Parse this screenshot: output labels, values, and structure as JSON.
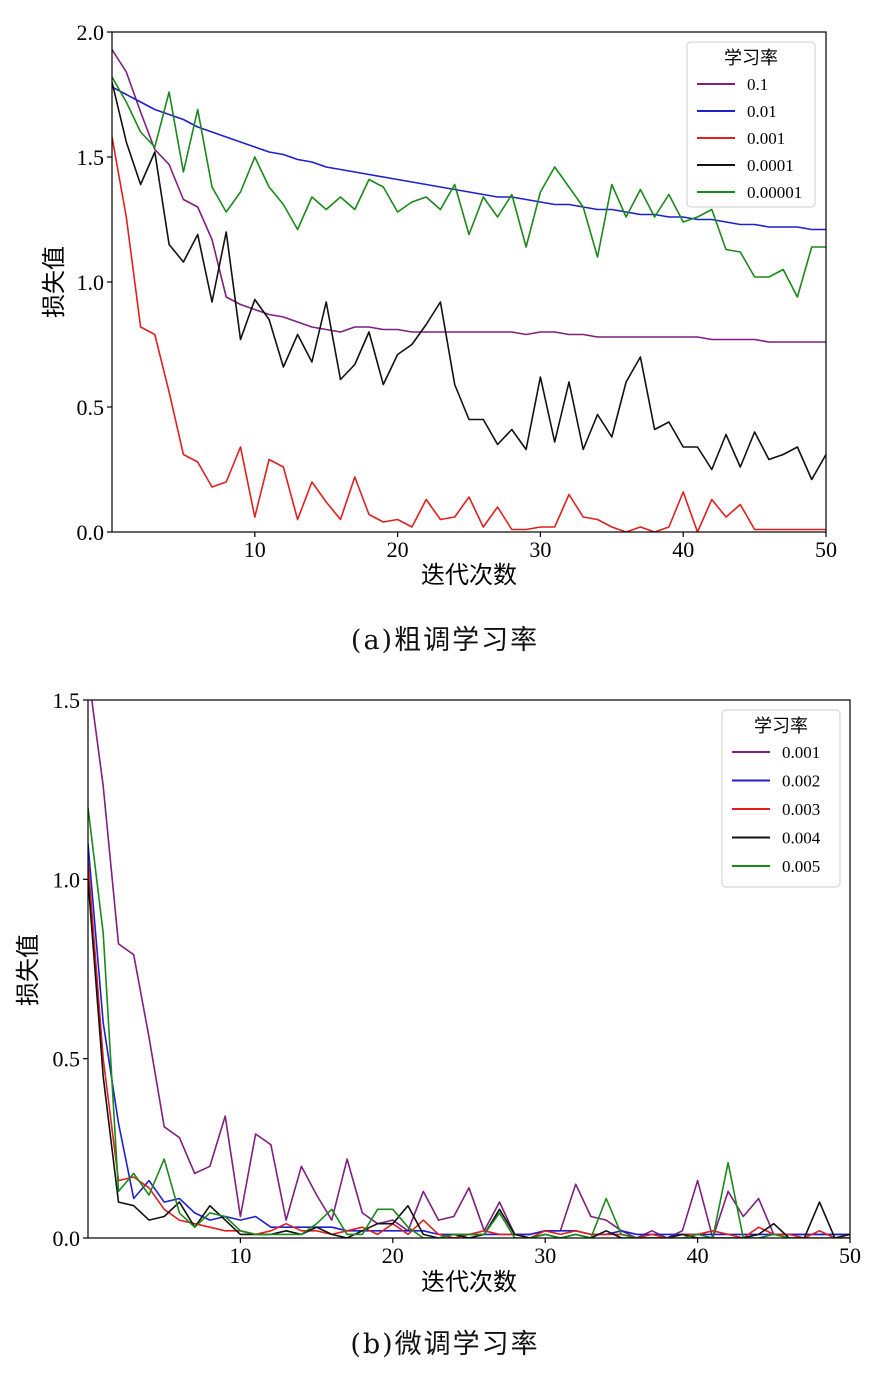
{
  "chart_data": [
    {
      "type": "line",
      "caption": "(a)粗调学习率",
      "xlabel": "迭代次数",
      "ylabel": "损失值",
      "xlim": [
        0,
        50
      ],
      "ylim": [
        0,
        2.0
      ],
      "xticks": [
        10,
        20,
        30,
        40,
        50
      ],
      "yticks": [
        0.0,
        0.5,
        1.0,
        1.5,
        2.0
      ],
      "ytick_labels": [
        "0.0",
        "0.5",
        "1.0",
        "1.5",
        "2.0"
      ],
      "legend_title": "学习率",
      "legend_position": "top-right",
      "grid": false,
      "x": [
        0,
        1,
        2,
        3,
        4,
        5,
        6,
        7,
        8,
        9,
        10,
        11,
        12,
        13,
        14,
        15,
        16,
        17,
        18,
        19,
        20,
        21,
        22,
        23,
        24,
        25,
        26,
        27,
        28,
        29,
        30,
        31,
        32,
        33,
        34,
        35,
        36,
        37,
        38,
        39,
        40,
        41,
        42,
        43,
        44,
        45,
        46,
        47,
        48,
        49,
        50
      ],
      "series": [
        {
          "name": "0.1",
          "color": "#7f1f7f",
          "values": [
            1.93,
            1.84,
            1.68,
            1.53,
            1.47,
            1.33,
            1.3,
            1.17,
            0.94,
            0.91,
            0.89,
            0.87,
            0.86,
            0.84,
            0.82,
            0.81,
            0.8,
            0.82,
            0.82,
            0.81,
            0.81,
            0.8,
            0.8,
            0.8,
            0.8,
            0.8,
            0.8,
            0.8,
            0.8,
            0.79,
            0.8,
            0.8,
            0.79,
            0.79,
            0.78,
            0.78,
            0.78,
            0.78,
            0.78,
            0.78,
            0.78,
            0.78,
            0.77,
            0.77,
            0.77,
            0.77,
            0.76,
            0.76,
            0.76,
            0.76,
            0.76
          ]
        },
        {
          "name": "0.01",
          "color": "#1f1fcf",
          "values": [
            1.78,
            1.75,
            1.72,
            1.69,
            1.67,
            1.65,
            1.62,
            1.6,
            1.58,
            1.56,
            1.54,
            1.52,
            1.51,
            1.49,
            1.48,
            1.46,
            1.45,
            1.44,
            1.43,
            1.42,
            1.41,
            1.4,
            1.39,
            1.38,
            1.37,
            1.36,
            1.35,
            1.34,
            1.34,
            1.33,
            1.32,
            1.31,
            1.31,
            1.3,
            1.29,
            1.29,
            1.28,
            1.27,
            1.27,
            1.26,
            1.26,
            1.25,
            1.25,
            1.24,
            1.23,
            1.23,
            1.22,
            1.22,
            1.22,
            1.21,
            1.21
          ]
        },
        {
          "name": "0.001",
          "color": "#e02020",
          "values": [
            1.58,
            1.26,
            0.82,
            0.79,
            0.56,
            0.31,
            0.28,
            0.18,
            0.2,
            0.34,
            0.06,
            0.29,
            0.26,
            0.05,
            0.2,
            0.12,
            0.05,
            0.22,
            0.07,
            0.04,
            0.05,
            0.02,
            0.13,
            0.05,
            0.06,
            0.14,
            0.02,
            0.1,
            0.01,
            0.01,
            0.02,
            0.02,
            0.15,
            0.06,
            0.05,
            0.02,
            0.0,
            0.02,
            0.0,
            0.02,
            0.16,
            0.0,
            0.13,
            0.06,
            0.11,
            0.01,
            0.01,
            0.01,
            0.01,
            0.01,
            0.01
          ]
        },
        {
          "name": "0.0001",
          "color": "#111111",
          "values": [
            1.8,
            1.56,
            1.39,
            1.52,
            1.15,
            1.08,
            1.19,
            0.92,
            1.2,
            0.77,
            0.93,
            0.85,
            0.66,
            0.79,
            0.68,
            0.92,
            0.61,
            0.67,
            0.8,
            0.59,
            0.71,
            0.75,
            0.83,
            0.92,
            0.59,
            0.45,
            0.45,
            0.35,
            0.41,
            0.33,
            0.62,
            0.36,
            0.6,
            0.33,
            0.47,
            0.38,
            0.6,
            0.7,
            0.41,
            0.44,
            0.34,
            0.34,
            0.25,
            0.39,
            0.26,
            0.4,
            0.29,
            0.31,
            0.34,
            0.21,
            0.31
          ]
        },
        {
          "name": "0.00001",
          "color": "#1a8a1a",
          "values": [
            1.82,
            1.72,
            1.6,
            1.54,
            1.76,
            1.44,
            1.69,
            1.38,
            1.28,
            1.36,
            1.5,
            1.38,
            1.31,
            1.21,
            1.34,
            1.29,
            1.34,
            1.29,
            1.41,
            1.38,
            1.28,
            1.32,
            1.34,
            1.29,
            1.39,
            1.19,
            1.34,
            1.26,
            1.35,
            1.14,
            1.36,
            1.46,
            1.38,
            1.3,
            1.1,
            1.39,
            1.26,
            1.37,
            1.26,
            1.35,
            1.24,
            1.26,
            1.29,
            1.13,
            1.12,
            1.02,
            1.02,
            1.05,
            0.94,
            1.14,
            1.14
          ]
        }
      ]
    },
    {
      "type": "line",
      "caption": "(b)微调学习率",
      "xlabel": "迭代次数",
      "ylabel": "损失值",
      "xlim": [
        0,
        50
      ],
      "ylim": [
        0,
        1.5
      ],
      "xticks": [
        10,
        20,
        30,
        40,
        50
      ],
      "yticks": [
        0.0,
        0.5,
        1.0,
        1.5
      ],
      "ytick_labels": [
        "0.0",
        "0.5",
        "1.0",
        "1.5"
      ],
      "legend_title": "学习率",
      "legend_position": "top-right",
      "grid": false,
      "x": [
        0,
        1,
        2,
        3,
        4,
        5,
        6,
        7,
        8,
        9,
        10,
        11,
        12,
        13,
        14,
        15,
        16,
        17,
        18,
        19,
        20,
        21,
        22,
        23,
        24,
        25,
        26,
        27,
        28,
        29,
        30,
        31,
        32,
        33,
        34,
        35,
        36,
        37,
        38,
        39,
        40,
        41,
        42,
        43,
        44,
        45,
        46,
        47,
        48,
        49,
        50
      ],
      "series": [
        {
          "name": "0.001",
          "color": "#7f1f7f",
          "values": [
            1.58,
            1.26,
            0.82,
            0.79,
            0.56,
            0.31,
            0.28,
            0.18,
            0.2,
            0.34,
            0.06,
            0.29,
            0.26,
            0.05,
            0.2,
            0.12,
            0.05,
            0.22,
            0.07,
            0.04,
            0.05,
            0.02,
            0.13,
            0.05,
            0.06,
            0.14,
            0.02,
            0.1,
            0.01,
            0.01,
            0.02,
            0.02,
            0.15,
            0.06,
            0.05,
            0.02,
            0.0,
            0.02,
            0.0,
            0.02,
            0.16,
            0.0,
            0.13,
            0.06,
            0.11,
            0.01,
            0.01,
            0.01,
            0.01,
            0.01,
            0.01
          ]
        },
        {
          "name": "0.002",
          "color": "#1f1fcf",
          "values": [
            1.1,
            0.6,
            0.32,
            0.11,
            0.16,
            0.1,
            0.11,
            0.07,
            0.05,
            0.06,
            0.05,
            0.06,
            0.03,
            0.03,
            0.03,
            0.03,
            0.03,
            0.02,
            0.02,
            0.02,
            0.02,
            0.02,
            0.02,
            0.01,
            0.01,
            0.01,
            0.01,
            0.01,
            0.01,
            0.01,
            0.02,
            0.02,
            0.02,
            0.01,
            0.01,
            0.02,
            0.01,
            0.01,
            0.01,
            0.01,
            0.01,
            0.01,
            0.01,
            0.01,
            0.01,
            0.01,
            0.01,
            0.01,
            0.01,
            0.01,
            0.01
          ]
        },
        {
          "name": "0.003",
          "color": "#e02020",
          "values": [
            1.05,
            0.5,
            0.16,
            0.17,
            0.14,
            0.08,
            0.05,
            0.04,
            0.03,
            0.02,
            0.02,
            0.01,
            0.02,
            0.04,
            0.02,
            0.02,
            0.01,
            0.02,
            0.03,
            0.01,
            0.04,
            0.01,
            0.05,
            0.01,
            0.0,
            0.01,
            0.02,
            0.01,
            0.01,
            0.0,
            0.02,
            0.01,
            0.02,
            0.01,
            0.01,
            0.01,
            0.0,
            0.01,
            0.0,
            0.01,
            0.01,
            0.02,
            0.01,
            0.0,
            0.03,
            0.01,
            0.01,
            0.0,
            0.02,
            0.0,
            0.0
          ]
        },
        {
          "name": "0.004",
          "color": "#111111",
          "values": [
            1.0,
            0.45,
            0.1,
            0.09,
            0.05,
            0.06,
            0.1,
            0.03,
            0.09,
            0.05,
            0.01,
            0.01,
            0.01,
            0.02,
            0.01,
            0.03,
            0.01,
            0.0,
            0.02,
            0.04,
            0.04,
            0.09,
            0.01,
            0.0,
            0.01,
            0.0,
            0.01,
            0.08,
            0.01,
            0.0,
            0.01,
            0.0,
            0.01,
            0.0,
            0.02,
            0.0,
            0.0,
            0.0,
            0.0,
            0.01,
            0.0,
            0.0,
            0.0,
            0.0,
            0.01,
            0.04,
            0.0,
            0.0,
            0.1,
            0.0,
            0.01
          ]
        },
        {
          "name": "0.005",
          "color": "#1a8a1a",
          "values": [
            1.2,
            0.85,
            0.13,
            0.18,
            0.12,
            0.22,
            0.07,
            0.03,
            0.07,
            0.06,
            0.02,
            0.01,
            0.01,
            0.01,
            0.01,
            0.04,
            0.08,
            0.01,
            0.01,
            0.08,
            0.08,
            0.03,
            0.0,
            0.0,
            0.01,
            0.01,
            0.01,
            0.07,
            0.0,
            0.0,
            0.01,
            0.0,
            0.01,
            0.0,
            0.11,
            0.01,
            0.0,
            0.0,
            0.0,
            0.0,
            0.01,
            0.0,
            0.21,
            0.0,
            0.0,
            0.01,
            0.0,
            0.0,
            0.0,
            0.0,
            0.0
          ]
        }
      ]
    }
  ]
}
